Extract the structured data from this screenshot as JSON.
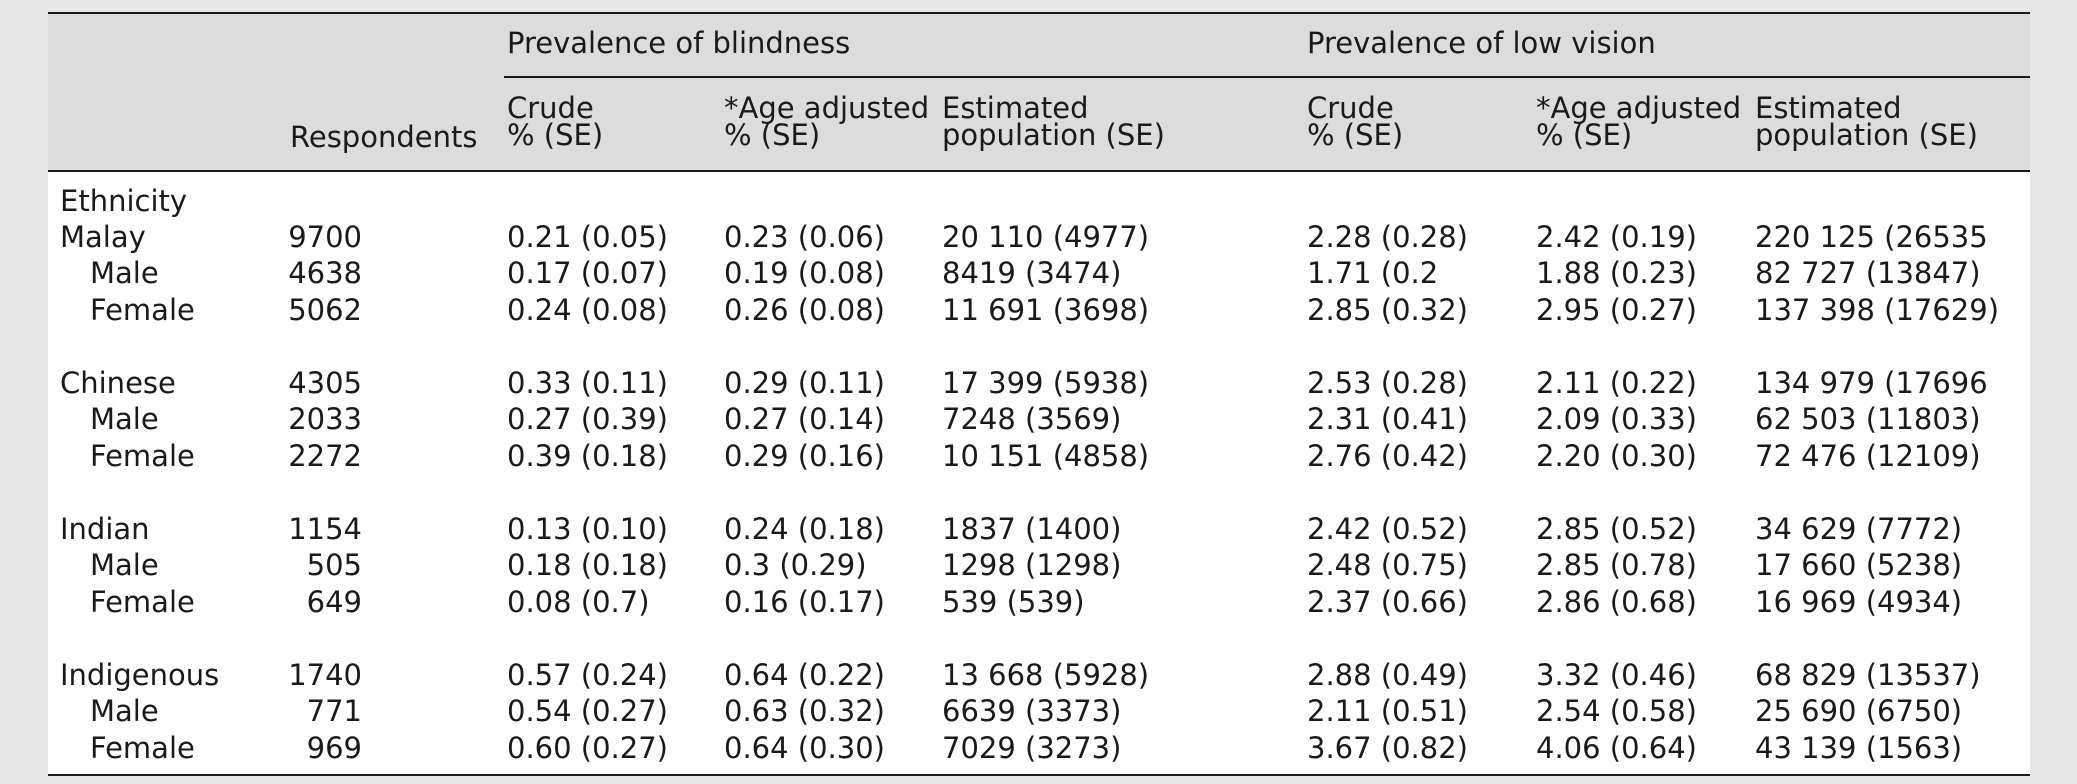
{
  "header": {
    "group_blindness": "Prevalence of blindness",
    "group_low_vision": "Prevalence of low vision",
    "respondents": "Respondents",
    "crude_l1": "Crude",
    "crude_l2": "% (SE)",
    "age_l1": "*Age adjusted",
    "age_l2": "% (SE)",
    "est_l1": "Estimated",
    "est_l2": "population (SE)"
  },
  "section_label": "Ethnicity",
  "rows": [
    {
      "label": "Malay",
      "respondents": "9700",
      "b_crude": "0.21 (0.05)",
      "b_age": "0.23 (0.06)",
      "b_est": "20 110 (4977)",
      "lv_crude": "2.28 (0.28)",
      "lv_age": "2.42 (0.19)",
      "lv_est": "220 125 (26535"
    },
    {
      "label": "Male",
      "respondents": "4638",
      "b_crude": "0.17 (0.07)",
      "b_age": "0.19 (0.08)",
      "b_est": "8419 (3474)",
      "lv_crude": "1.71 (0.2",
      "lv_age": "1.88 (0.23)",
      "lv_est": "82 727 (13847)"
    },
    {
      "label": "Female",
      "respondents": "5062",
      "b_crude": "0.24 (0.08)",
      "b_age": "0.26 (0.08)",
      "b_est": "11 691 (3698)",
      "lv_crude": "2.85 (0.32)",
      "lv_age": "2.95 (0.27)",
      "lv_est": "137 398 (17629)"
    },
    {
      "label": "Chinese",
      "respondents": "4305",
      "b_crude": "0.33 (0.11)",
      "b_age": "0.29 (0.11)",
      "b_est": "17 399 (5938)",
      "lv_crude": "2.53 (0.28)",
      "lv_age": "2.11 (0.22)",
      "lv_est": "134 979 (17696"
    },
    {
      "label": "Male",
      "respondents": "2033",
      "b_crude": "0.27 (0.39)",
      "b_age": "0.27 (0.14)",
      "b_est": "7248 (3569)",
      "lv_crude": "2.31 (0.41)",
      "lv_age": "2.09 (0.33)",
      "lv_est": "62 503 (11803)"
    },
    {
      "label": "Female",
      "respondents": "2272",
      "b_crude": "0.39 (0.18)",
      "b_age": "0.29 (0.16)",
      "b_est": "10 151 (4858)",
      "lv_crude": "2.76 (0.42)",
      "lv_age": "2.20 (0.30)",
      "lv_est": "72 476 (12109)"
    },
    {
      "label": "Indian",
      "respondents": "1154",
      "b_crude": "0.13 (0.10)",
      "b_age": "0.24 (0.18)",
      "b_est": "1837 (1400)",
      "lv_crude": "2.42 (0.52)",
      "lv_age": "2.85 (0.52)",
      "lv_est": "34 629 (7772)"
    },
    {
      "label": "Male",
      "respondents": "505",
      "b_crude": "0.18 (0.18)",
      "b_age": "0.3 (0.29)",
      "b_est": "1298 (1298)",
      "lv_crude": "2.48 (0.75)",
      "lv_age": "2.85 (0.78)",
      "lv_est": "17 660 (5238)"
    },
    {
      "label": "Female",
      "respondents": "649",
      "b_crude": "0.08 (0.7)",
      "b_age": "0.16 (0.17)",
      "b_est": "539 (539)",
      "lv_crude": "2.37 (0.66)",
      "lv_age": "2.86 (0.68)",
      "lv_est": "16 969 (4934)"
    },
    {
      "label": "Indigenous",
      "respondents": "1740",
      "b_crude": "0.57 (0.24)",
      "b_age": "0.64 (0.22)",
      "b_est": "13 668 (5928)",
      "lv_crude": "2.88 (0.49)",
      "lv_age": "3.32 (0.46)",
      "lv_est": "68 829 (13537)"
    },
    {
      "label": "Male",
      "respondents": "771",
      "b_crude": "0.54 (0.27)",
      "b_age": "0.63 (0.32)",
      "b_est": "6639 (3373)",
      "lv_crude": "2.11 (0.51)",
      "lv_age": "2.54 (0.58)",
      "lv_est": "25 690 (6750)"
    },
    {
      "label": "Female",
      "respondents": "969",
      "b_crude": "0.60 (0.27)",
      "b_age": "0.64 (0.30)",
      "b_est": "7029 (3273)",
      "lv_crude": "3.67 (0.82)",
      "lv_age": "4.06 (0.64)",
      "lv_est": "43 139 (1563)"
    }
  ]
}
